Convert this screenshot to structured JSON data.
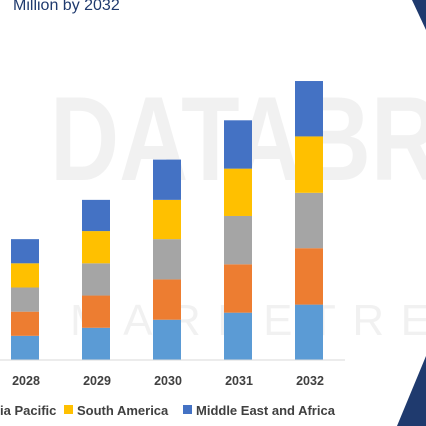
{
  "header": {
    "title_fragment": "Million by 2032"
  },
  "watermark": {
    "main": "DATABR",
    "sub": "MARKETRE"
  },
  "colors": {
    "accent_triangle": "#1f3a6e",
    "axis": "#d9d9d9"
  },
  "chart_data": {
    "type": "bar",
    "stacked": true,
    "categories": [
      "2028",
      "2029",
      "2030",
      "2031",
      "2032"
    ],
    "ylim": [
      0,
      280
    ],
    "grid": false,
    "legend_position": "bottom",
    "series": [
      {
        "name": "",
        "color": "#5b9bd5",
        "values": [
          24,
          32,
          40,
          47,
          55
        ]
      },
      {
        "name": "",
        "color": "#ed7d31",
        "values": [
          24,
          32,
          40,
          48,
          56
        ]
      },
      {
        "name": "",
        "color": "#a5a5a5",
        "values": [
          24,
          32,
          40,
          48,
          55
        ]
      },
      {
        "name": "South America",
        "color": "#ffc000",
        "values": [
          24,
          32,
          39,
          47,
          56
        ]
      },
      {
        "name": "Middle East and Africa",
        "color": "#4472c4",
        "values": [
          24,
          31,
          40,
          48,
          55
        ]
      }
    ],
    "legend_labels": [
      "ia Pacific",
      "South America",
      "Middle East and Africa"
    ],
    "legend_colors": [
      "#ffc000",
      "#4472c4"
    ]
  }
}
